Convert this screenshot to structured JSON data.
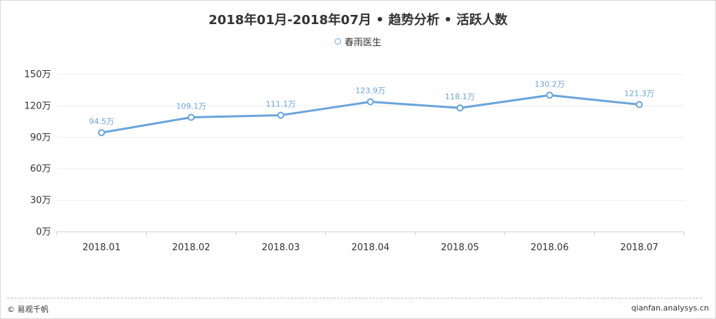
{
  "chart_data": {
    "type": "line",
    "title": "2018年01月-2018年07月 • 趋势分析 • 活跃人数",
    "categories": [
      "2018.01",
      "2018.02",
      "2018.03",
      "2018.04",
      "2018.05",
      "2018.06",
      "2018.07"
    ],
    "series": [
      {
        "name": "春雨医生",
        "values": [
          94.5,
          109.1,
          111.1,
          123.9,
          118.1,
          130.2,
          121.3
        ],
        "labels": [
          "94.5万",
          "109.1万",
          "111.1万",
          "123.9万",
          "118.1万",
          "130.2万",
          "121.3万"
        ],
        "color": "#6aa4dc"
      }
    ],
    "ylim": [
      0,
      150
    ],
    "yticks": [
      0,
      30,
      60,
      90,
      120,
      150
    ],
    "ytick_labels": [
      "0万",
      "30万",
      "60万",
      "90万",
      "120万",
      "150万"
    ],
    "legend_position": "top-center",
    "grid": true
  },
  "footer": {
    "left": "© 易观千帆",
    "right": "qianfan.analysys.cn"
  }
}
